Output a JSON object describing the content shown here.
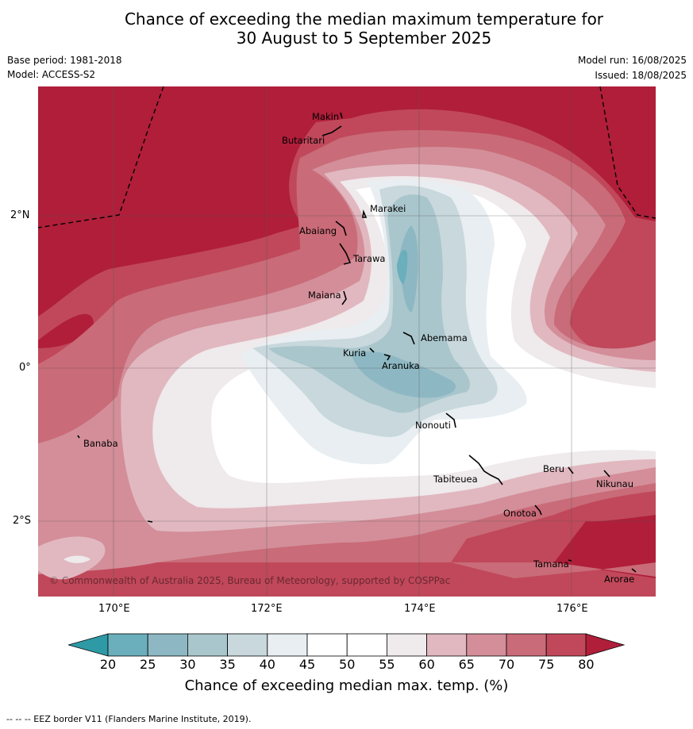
{
  "title_line1": "Chance of exceeding the median maximum temperature for",
  "title_line2": "30 August to 5 September 2025",
  "base_period": "Base period: 1981-2018",
  "model": "Model: ACCESS-S2",
  "model_run": "Model run: 16/08/2025",
  "issued": "Issued: 18/08/2025",
  "copyright": "© Commonwealth of Australia 2025, Bureau of Meteorology, supported by COSPPac",
  "x_ticks": [
    "170°E",
    "172°E",
    "174°E",
    "176°E"
  ],
  "y_ticks": [
    "2°N",
    "0°",
    "2°S"
  ],
  "places": {
    "makin": "Makin",
    "butaritari": "Butaritari",
    "marakei": "Marakei",
    "abaiang": "Abaiang",
    "tarawa": "Tarawa",
    "maiana": "Maiana",
    "abemama": "Abemama",
    "kuria": "Kuria",
    "aranuka": "Aranuka",
    "banaba": "Banaba",
    "nonouti": "Nonouti",
    "tabiteuea": "Tabiteuea",
    "beru": "Beru",
    "nikunau": "Nikunau",
    "onotoa": "Onotoa",
    "tamana": "Tamana",
    "arorae": "Arorae"
  },
  "colorbar": {
    "label": "Chance of exceeding median max. temp. (%)",
    "ticks": [
      "20",
      "25",
      "30",
      "35",
      "40",
      "45",
      "50",
      "55",
      "60",
      "65",
      "70",
      "75",
      "80"
    ],
    "colors": [
      "#2e9aa6",
      "#6aafbb",
      "#8db8c3",
      "#a9c6cc",
      "#c8d8dd",
      "#e8eef1",
      "#ffffff",
      "#ffffff",
      "#efeaec",
      "#e1b8c0",
      "#d38e99",
      "#c96b78",
      "#c0485a",
      "#b01e3a"
    ]
  },
  "footer": "--  --  -- EEZ border V11 (Flanders Marine Institute, 2019)."
}
